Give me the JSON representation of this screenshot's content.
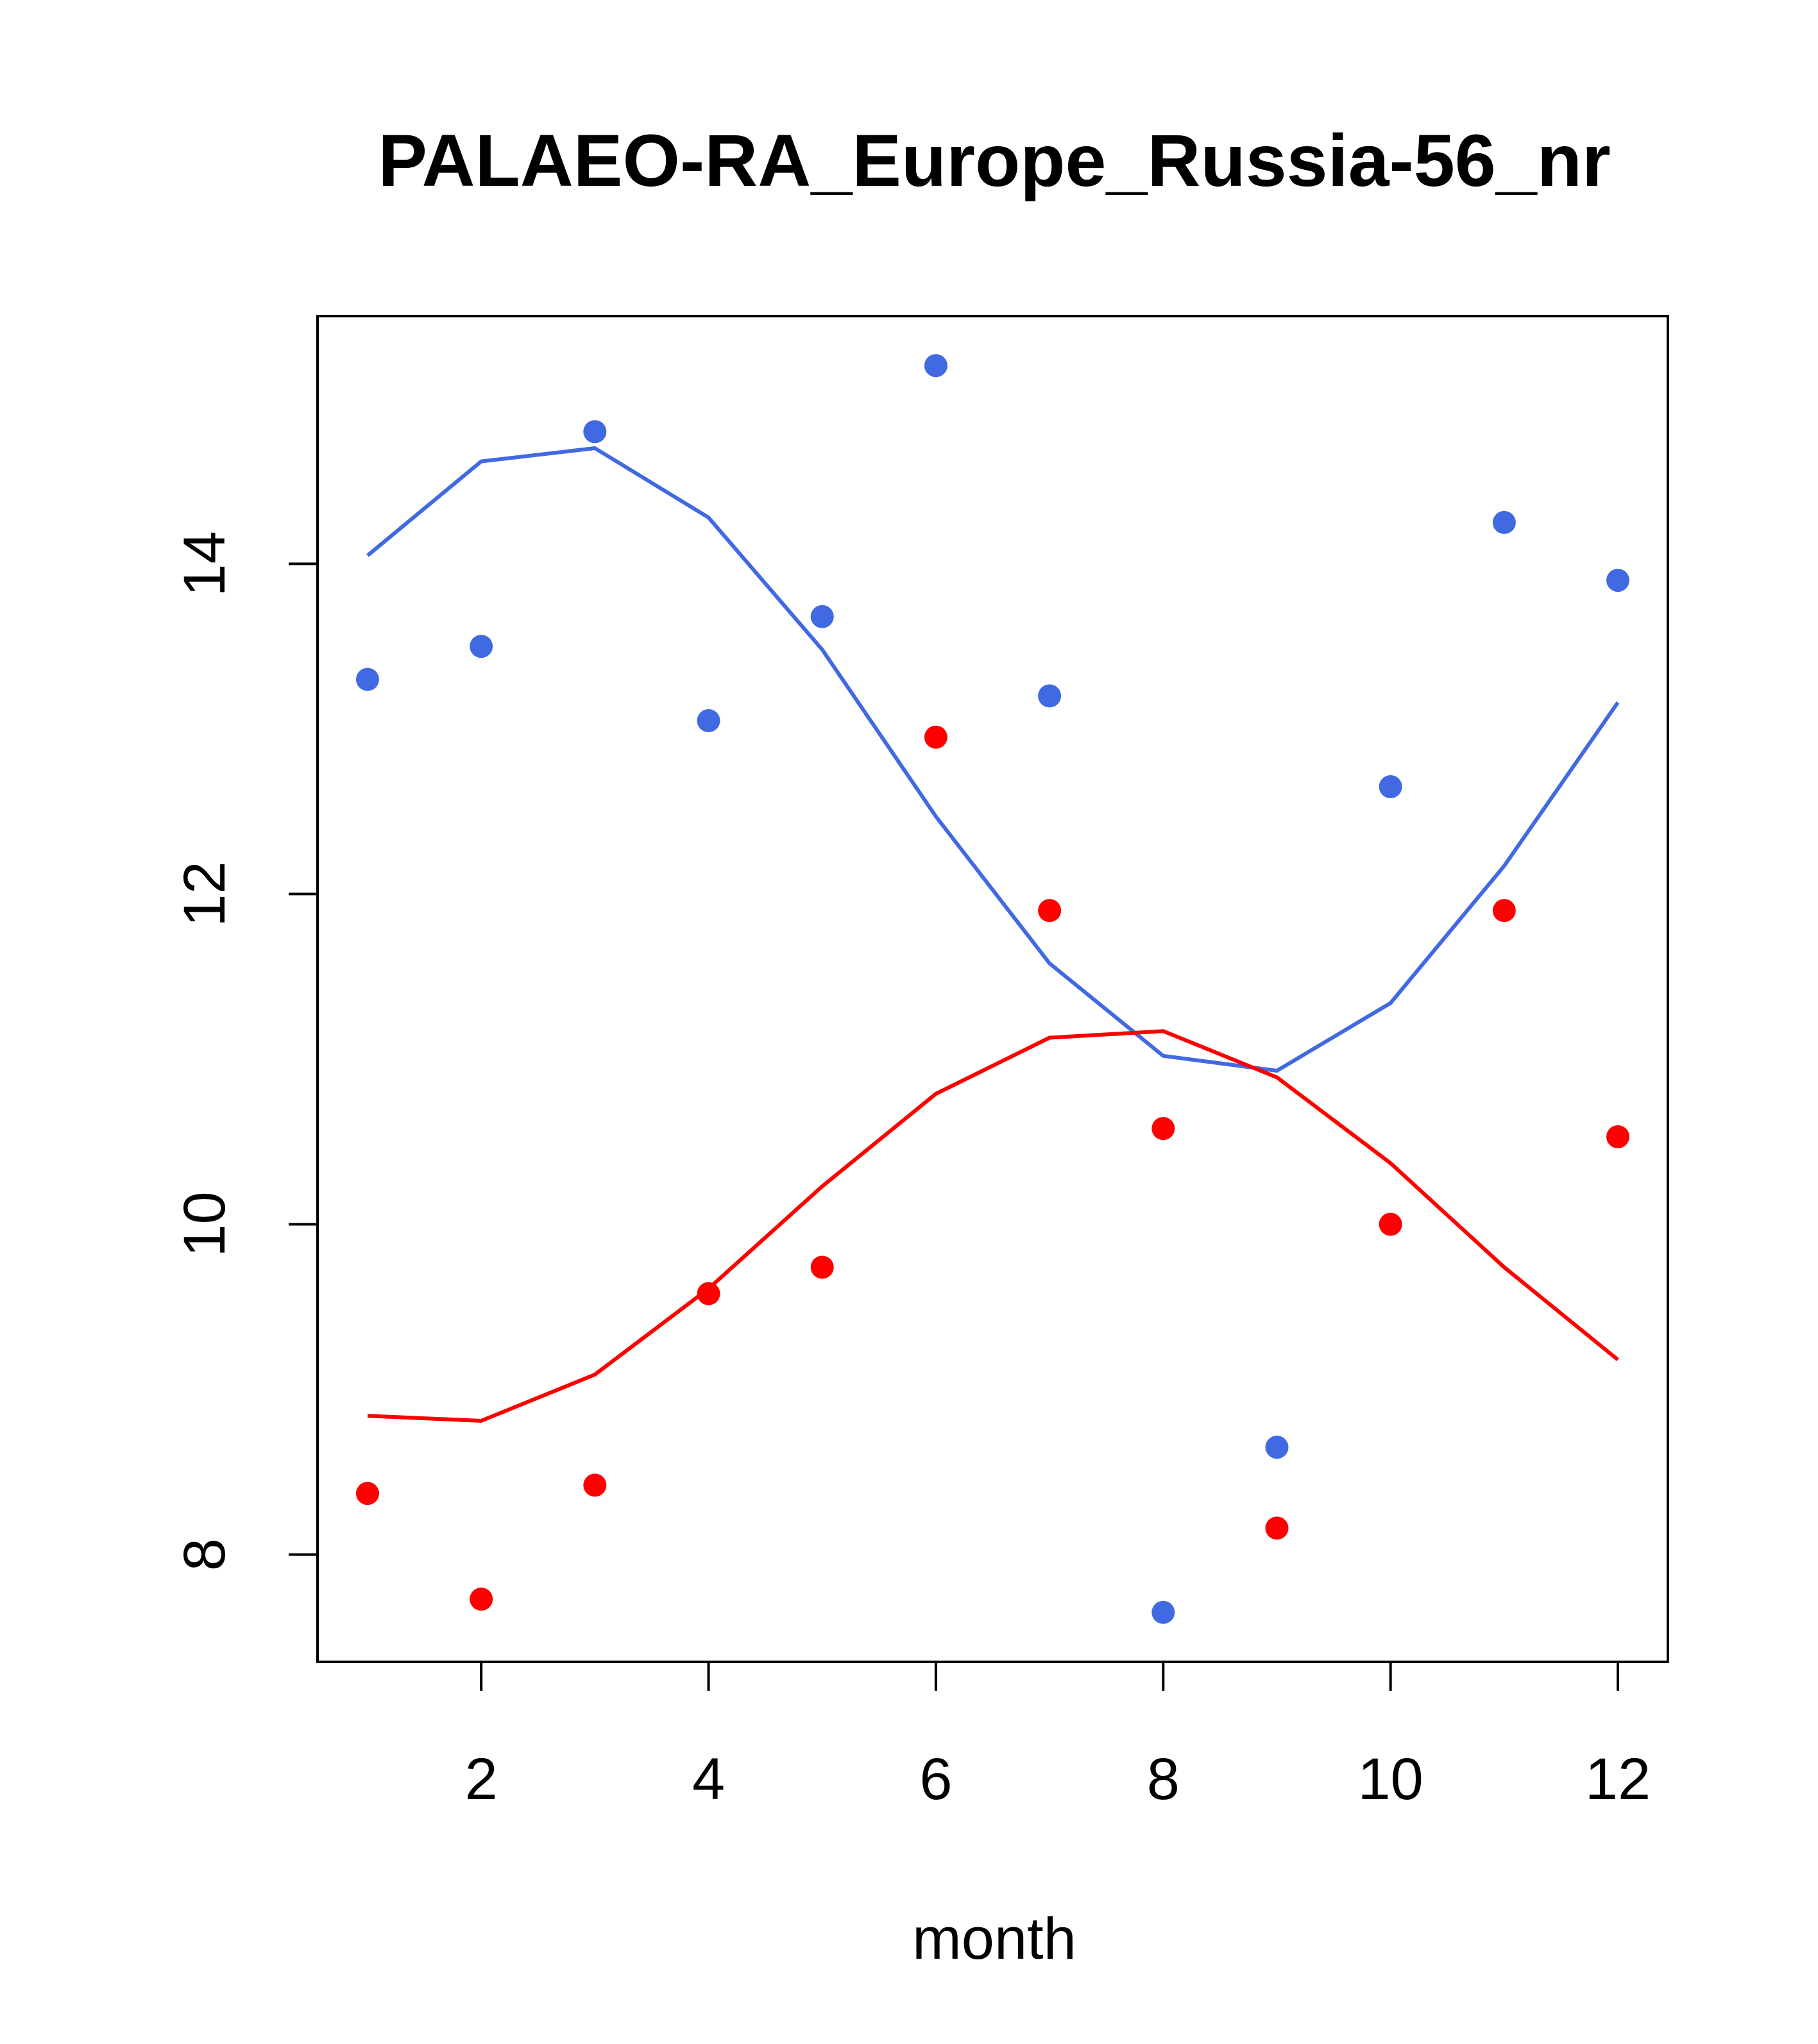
{
  "chart_data": {
    "type": "scatter",
    "title": "PALAEO-RA_Europe_Russia-56_nr",
    "xlabel": "month",
    "ylabel": "",
    "xlim": [
      0.56,
      12.44
    ],
    "ylim": [
      7.35,
      15.5
    ],
    "xticks": [
      2,
      4,
      6,
      8,
      10,
      12
    ],
    "yticks": [
      8,
      10,
      12,
      14
    ],
    "grid": false,
    "colors": {
      "blue": "#4169E1",
      "red": "#FF0000"
    },
    "series": [
      {
        "mode": "points",
        "color": "blue",
        "x": [
          1,
          2,
          3,
          4,
          5,
          6,
          7,
          8,
          9,
          10,
          11,
          12
        ],
        "y": [
          13.3,
          13.5,
          14.8,
          13.05,
          13.68,
          15.2,
          13.2,
          7.65,
          8.65,
          12.65,
          14.25,
          13.9
        ]
      },
      {
        "mode": "line",
        "color": "blue",
        "x": [
          1,
          2,
          3,
          4,
          5,
          6,
          7,
          8,
          9,
          10,
          11,
          12
        ],
        "y": [
          14.05,
          14.62,
          14.7,
          14.28,
          13.48,
          12.47,
          11.58,
          11.02,
          10.93,
          11.34,
          12.17,
          13.16
        ]
      },
      {
        "mode": "points",
        "color": "red",
        "x": [
          1,
          2,
          3,
          4,
          5,
          6,
          7,
          8,
          9,
          10,
          11,
          12
        ],
        "y": [
          8.37,
          7.73,
          8.42,
          9.58,
          9.74,
          12.95,
          11.9,
          10.58,
          8.16,
          10.0,
          11.9,
          10.53
        ]
      },
      {
        "mode": "line",
        "color": "red",
        "x": [
          1,
          2,
          3,
          4,
          5,
          6,
          7,
          8,
          9,
          10,
          11,
          12
        ],
        "y": [
          8.84,
          8.81,
          9.09,
          9.61,
          10.23,
          10.79,
          11.13,
          11.17,
          10.89,
          10.37,
          9.74,
          9.18
        ]
      }
    ]
  }
}
